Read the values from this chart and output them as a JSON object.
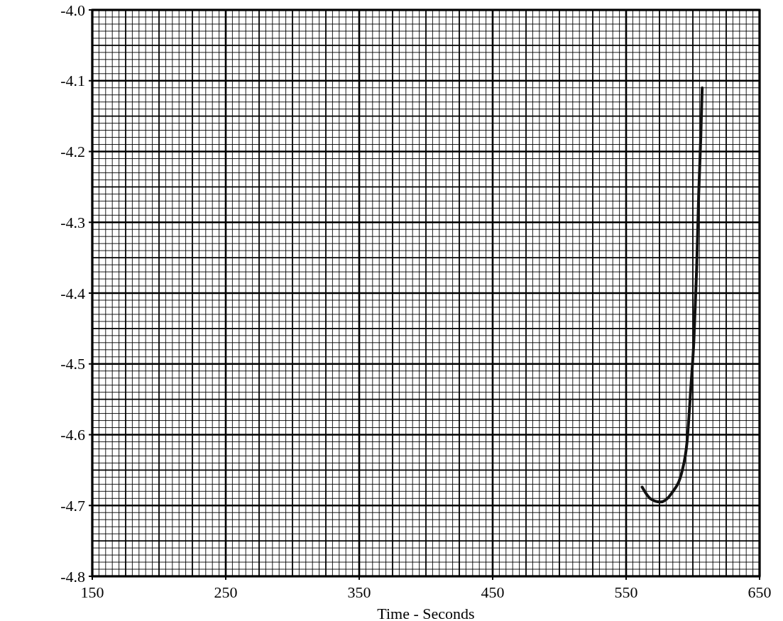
{
  "chart_data": {
    "type": "line",
    "xlabel": "Time - Seconds",
    "x": [
      562,
      568,
      575.6,
      584,
      592,
      595.6,
      598.7,
      600.8,
      602.9,
      604.4,
      606,
      607
    ],
    "series": [
      {
        "color": "#111111",
        "values": [
          -4.674,
          -4.69,
          -4.695,
          -4.683,
          -4.651,
          -4.611,
          -4.528,
          -4.466,
          -4.363,
          -4.26,
          -4.177,
          -4.11
        ]
      }
    ],
    "xlim": [
      150,
      650
    ],
    "xticks": [
      150,
      250,
      350,
      450,
      550,
      650
    ],
    "ylim": [
      -4.8,
      -4.0
    ],
    "yticks": [
      {
        "value": -4.8,
        "label": "-4.8"
      },
      {
        "value": -4.7,
        "label": "-4.7"
      },
      {
        "value": -4.6,
        "label": "-4.6"
      },
      {
        "value": -4.5,
        "label": "-4.5"
      },
      {
        "value": -4.4,
        "label": "-4.4"
      },
      {
        "value": -4.3,
        "label": "-4.3"
      },
      {
        "value": -4.2,
        "label": "-4.2"
      },
      {
        "value": -4.1,
        "label": "-4.1"
      },
      {
        "value": -4.0,
        "label": "-4.0"
      }
    ],
    "grid": true,
    "marker": "none",
    "line_style": "solid"
  }
}
